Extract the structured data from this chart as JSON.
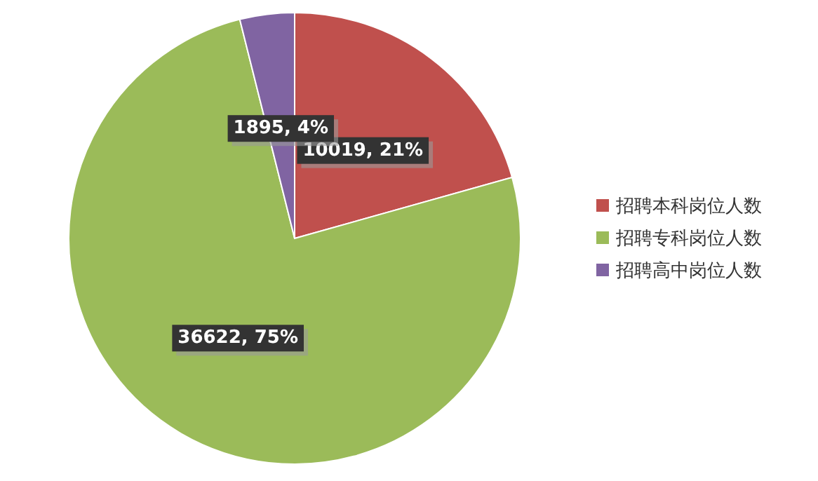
{
  "chart_data": {
    "type": "pie",
    "categories": [
      "招聘本科岗位人数",
      "招聘专科岗位人数",
      "招聘高中岗位人数"
    ],
    "values": [
      10019,
      36622,
      1895
    ],
    "colors": [
      "#c0504d",
      "#9bbb59",
      "#8064a2"
    ],
    "value_labels": [
      "10019, 21%",
      "36622, 75%",
      "1895, 4%"
    ],
    "legend": "right"
  }
}
